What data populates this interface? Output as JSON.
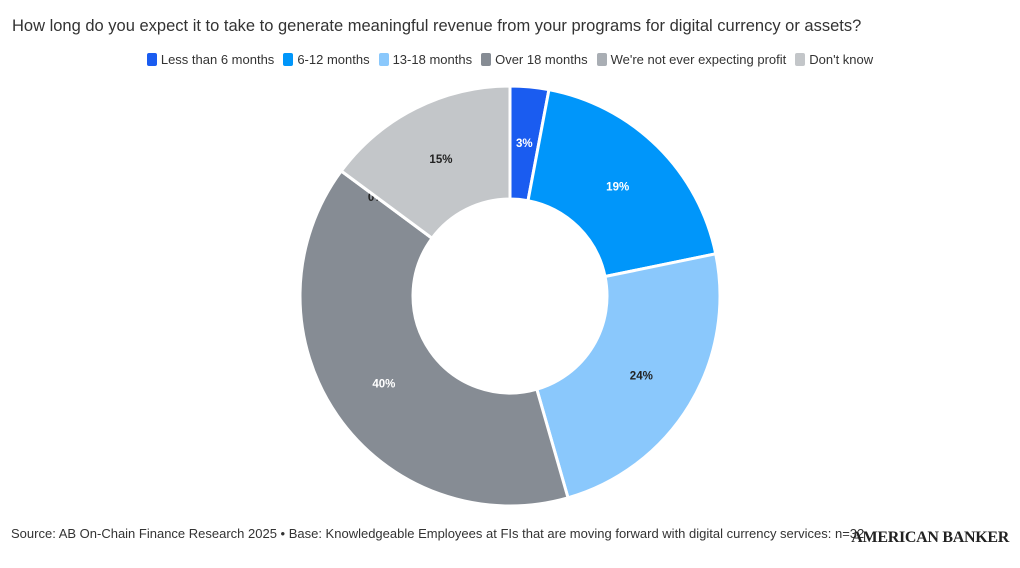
{
  "chart_data": {
    "type": "pie",
    "donut": true,
    "title": "How long do you expect it to take to generate meaningful revenue from your programs for digital currency or assets?",
    "categories": [
      "Less than 6 months",
      "6-12 months",
      "13-18 months",
      "Over 18 months",
      "We're not ever expecting profit",
      "Don't know"
    ],
    "values": [
      3,
      19,
      24,
      40,
      0,
      15
    ],
    "labels": [
      "3%",
      "19%",
      "24%",
      "40%",
      "0%",
      "15%"
    ],
    "colors": [
      "#1a5cf0",
      "#0096fa",
      "#8ac8fc",
      "#868c94",
      "#a9aeb4",
      "#c3c6c9"
    ],
    "label_colors": [
      "#ffffff",
      "#ffffff",
      "#222222",
      "#ffffff",
      "#222222",
      "#222222"
    ],
    "legend_position": "top"
  },
  "footer": {
    "source": "Source: AB On-Chain Finance Research 2025 • Base: Knowledgeable Employees at FIs that are moving forward with digital currency services: n=32",
    "brand": "AMERICAN BANKER"
  }
}
